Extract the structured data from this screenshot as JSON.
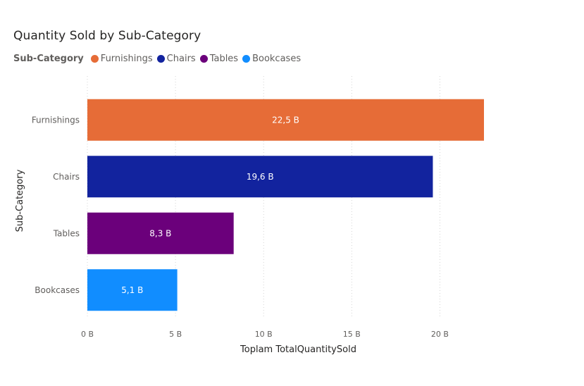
{
  "chart_data": {
    "type": "bar",
    "orientation": "horizontal",
    "title": "Quantity Sold by Sub-Category",
    "legend_title": "Sub-Category",
    "legend_position": "top-left",
    "xlabel": "Toplam TotalQuantitySold",
    "ylabel": "Sub-Category",
    "xlim": [
      0,
      22.5
    ],
    "x_ticks": [
      0,
      5,
      10,
      15,
      20
    ],
    "x_tick_labels": [
      "0 B",
      "5 B",
      "10 B",
      "15 B",
      "20 B"
    ],
    "grid": "vertical-dotted",
    "categories": [
      "Furnishings",
      "Chairs",
      "Tables",
      "Bookcases"
    ],
    "values": [
      22.5,
      19.6,
      8.3,
      5.1
    ],
    "data_labels": [
      "22,5 B",
      "19,6 B",
      "8,3 B",
      "5,1 B"
    ],
    "colors": [
      "#E66C37",
      "#12239E",
      "#6B007B",
      "#118DFF"
    ]
  }
}
